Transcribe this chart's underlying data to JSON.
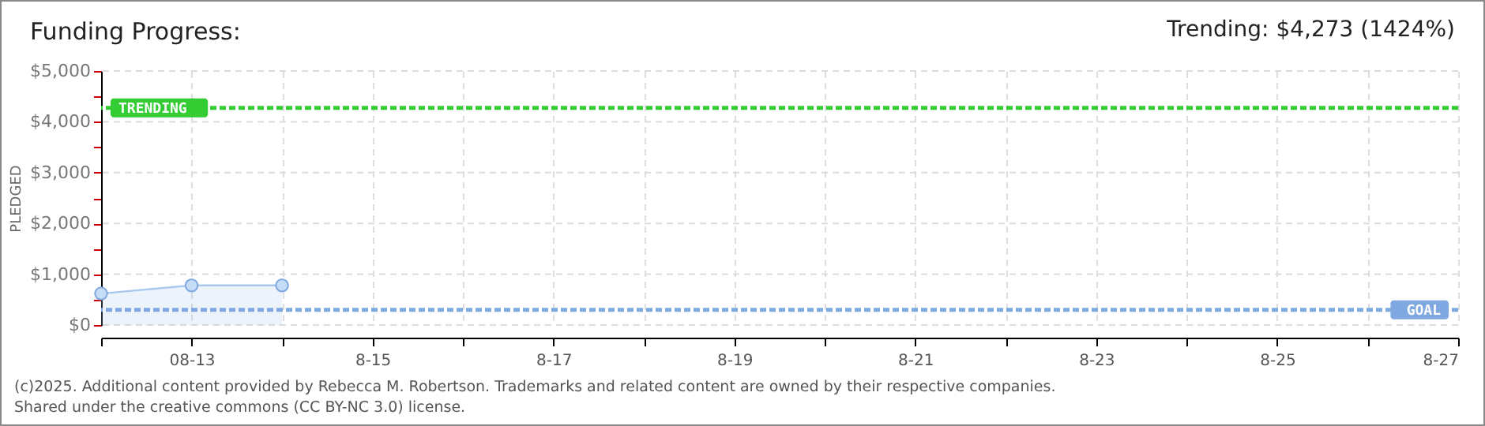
{
  "chart_data": {
    "type": "area",
    "title": "Funding Progress:",
    "subtitle": "Trending: $4,273 (1424%)",
    "ylabel": "PLEDGED",
    "x": [
      "--08-12",
      "--08-13",
      "--08-14"
    ],
    "series": [
      {
        "color": "#a9c8ee",
        "values": [
          620,
          780,
          780
        ]
      }
    ],
    "xlim": [
      "--08-12",
      "--08-27"
    ],
    "xticks": [
      {
        "value": "--08-12",
        "label": null
      },
      {
        "value": "--08-13",
        "label": "08-13"
      },
      {
        "value": "--08-14",
        "label": null
      },
      {
        "value": "--08-15",
        "label": "8-15"
      },
      {
        "value": "--08-16",
        "label": null
      },
      {
        "value": "--08-17",
        "label": "8-17"
      },
      {
        "value": "--08-18",
        "label": null
      },
      {
        "value": "--08-19",
        "label": "8-19"
      },
      {
        "value": "--08-20",
        "label": null
      },
      {
        "value": "--08-21",
        "label": "8-21"
      },
      {
        "value": "--08-22",
        "label": null
      },
      {
        "value": "--08-23",
        "label": "8-23"
      },
      {
        "value": "--08-24",
        "label": null
      },
      {
        "value": "--08-25",
        "label": "8-25"
      },
      {
        "value": "--08-26",
        "label": null
      },
      {
        "value": "--08-27",
        "label": "8-27"
      }
    ],
    "ylim": [
      0,
      5000
    ],
    "yticks": [
      {
        "value": 0,
        "label": "$0"
      },
      {
        "value": 500,
        "label": null
      },
      {
        "value": 1000,
        "label": "$1,000"
      },
      {
        "value": 1500,
        "label": null
      },
      {
        "value": 2000,
        "label": "$2,000"
      },
      {
        "value": 2500,
        "label": null
      },
      {
        "value": 3000,
        "label": "$3,000"
      },
      {
        "value": 3500,
        "label": null
      },
      {
        "value": 4000,
        "label": "$4,000"
      },
      {
        "value": 4500,
        "label": null
      },
      {
        "value": 5000,
        "label": "$5,000"
      }
    ],
    "ref_lines": [
      {
        "axis": "y",
        "value": 4273,
        "label": "TRENDING",
        "color": "#33cc33",
        "line_style": "dashed"
      },
      {
        "axis": "y",
        "value": 300,
        "label": "GOAL",
        "color": "#7fa8e0",
        "line_style": "dashed"
      }
    ],
    "grid": true,
    "marker": "circle",
    "legend": false,
    "annotations": [
      "(c)2025. Additional content provided by Rebecca M. Robertson. Trademarks and related content are owned by their respective companies.",
      "Shared under the creative commons (CC BY-NC 3.0) license."
    ]
  }
}
